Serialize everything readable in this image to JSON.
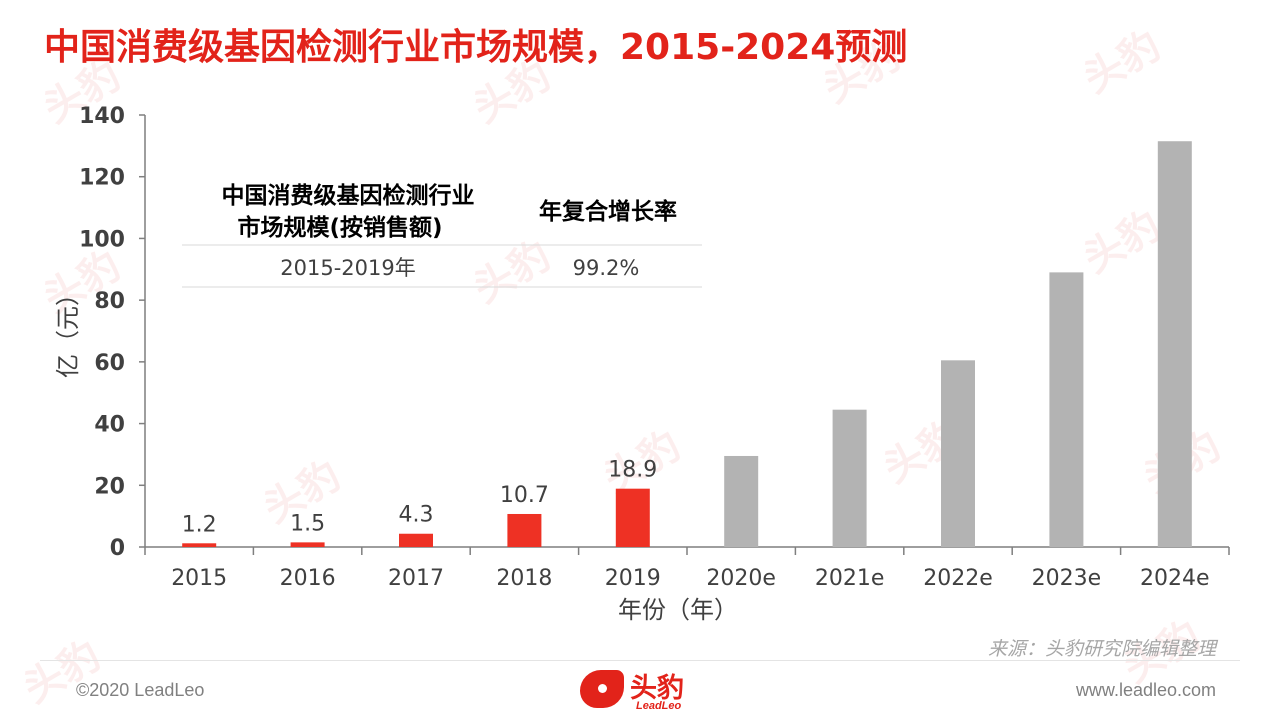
{
  "title": "中国消费级基因检测行业市场规模，2015-2024预测",
  "chart_data": {
    "type": "bar",
    "categories": [
      "2015",
      "2016",
      "2017",
      "2018",
      "2019",
      "2020e",
      "2021e",
      "2022e",
      "2023e",
      "2024e"
    ],
    "values": [
      1.2,
      1.5,
      4.3,
      10.7,
      18.9,
      29.5,
      44.5,
      60.5,
      89.0,
      131.5
    ],
    "data_labels": [
      "1.2",
      "1.5",
      "4.3",
      "10.7",
      "18.9",
      "",
      "",
      "",
      "",
      ""
    ],
    "bar_colors": [
      "#ee3124",
      "#ee3124",
      "#ee3124",
      "#ee3124",
      "#ee3124",
      "#b3b3b3",
      "#b3b3b3",
      "#b3b3b3",
      "#b3b3b3",
      "#b3b3b3"
    ],
    "ylim": [
      0,
      140
    ],
    "yticks": [
      0,
      20,
      40,
      60,
      80,
      100,
      120,
      140
    ],
    "xlabel": "年份（年）",
    "ylabel": "亿（元）",
    "grid": false,
    "inset_table": {
      "headers": [
        "中国消费级基因检测行业\n市场规模(按销售额)",
        "年复合增长率"
      ],
      "rows": [
        [
          "2015-2019年",
          "99.2%"
        ]
      ]
    }
  },
  "source": "来源：头豹研究院编辑整理",
  "footer": {
    "copyright": "©2020 LeadLeo",
    "website": "www.leadleo.com",
    "logo_cn": "头豹",
    "logo_en": "LeadLeo"
  },
  "watermark": {
    "cn": "头豹",
    "en": "LeadLeo"
  },
  "colors": {
    "accent": "#e2231a",
    "bar_actual": "#ee3124",
    "bar_forecast": "#b3b3b3",
    "axis": "#7f7f7f",
    "text": "#404040"
  }
}
